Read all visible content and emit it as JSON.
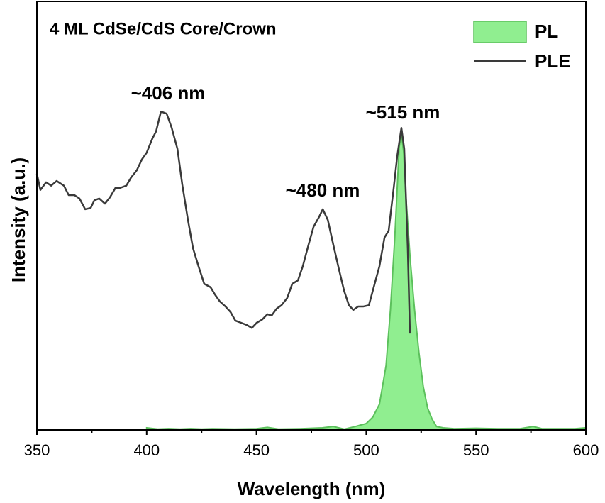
{
  "chart_data": {
    "type": "line-area",
    "title": "4 ML CdSe/CdS Core/Crown",
    "x_label": "Wavelength (nm)",
    "y_label": "Intensity (a.u.)",
    "annotations": [
      "~406 nm",
      "~480 nm",
      "~515 nm"
    ],
    "xlim": [
      350,
      600
    ],
    "xticks": [
      350,
      400,
      450,
      500,
      550,
      600
    ],
    "ylim": [
      0,
      100
    ],
    "legend": "upper right",
    "series": [
      {
        "name": "PL",
        "kind": "area",
        "color": "#90ee90",
        "edge": "#5cc05c",
        "x": [
          400,
          405,
          410,
          415,
          420,
          425,
          430,
          440,
          450,
          455,
          460,
          470,
          480,
          485,
          490,
          495,
          500,
          503,
          506,
          509,
          511,
          513,
          515,
          516,
          517,
          518,
          520,
          522,
          524,
          526,
          528,
          530,
          532,
          535,
          540,
          550,
          560,
          570,
          576,
          580,
          590,
          595,
          600
        ],
        "values": [
          0.5,
          0.2,
          0.3,
          0.2,
          0.3,
          0.2,
          0.3,
          0.2,
          0.3,
          0.6,
          0.2,
          0.3,
          0.5,
          0.8,
          0.2,
          0.8,
          1.5,
          3,
          6,
          15,
          28,
          45,
          66,
          69,
          65,
          55,
          40,
          28,
          18,
          10,
          5,
          2.5,
          0.8,
          0.5,
          0.3,
          0.4,
          0.3,
          0.3,
          0.8,
          0.3,
          0.3,
          0.3,
          0.5
        ]
      },
      {
        "name": "PLE",
        "kind": "line",
        "color": "#3a3a3a",
        "x": [
          350,
          351.6,
          354.2,
          356.5,
          359,
          362.3,
          364.5,
          367.1,
          369.4,
          372,
          374.5,
          376.2,
          378.4,
          381,
          383.3,
          385.8,
          388,
          390.7,
          392.9,
          395.5,
          397.8,
          400,
          402.6,
          404.3,
          406.5,
          409.1,
          411.4,
          414,
          416.2,
          418.8,
          421.1,
          423.6,
          426.2,
          429.1,
          431.1,
          433.3,
          435.9,
          438.2,
          440.4,
          443,
          445.6,
          447.9,
          450.1,
          452.7,
          455,
          456.9,
          459.2,
          461.4,
          464,
          466.3,
          468.9,
          471.1,
          473.7,
          476,
          478.6,
          480.2,
          482.5,
          485,
          487.6,
          489.9,
          492.1,
          494.1,
          496.3,
          498.6,
          501.2,
          503.4,
          506,
          508.3,
          510.2,
          512.5,
          514.1,
          516,
          517.3,
          518.9,
          519.9
        ],
        "values": [
          59.8,
          56.0,
          57.8,
          57.0,
          58.1,
          57.0,
          54.8,
          54.8,
          54.0,
          51.5,
          51.8,
          53.6,
          54.0,
          52.8,
          54.3,
          56.5,
          56.5,
          57.0,
          58.9,
          60.6,
          63.1,
          64.7,
          68.0,
          69.7,
          74.3,
          73.8,
          70.5,
          65.6,
          57.3,
          49.0,
          42.4,
          38.2,
          34.1,
          33.3,
          31.6,
          30.0,
          28.8,
          27.5,
          25.5,
          25.0,
          24.5,
          23.8,
          25.0,
          25.8,
          27.0,
          26.7,
          28.3,
          29.1,
          30.8,
          34.1,
          34.9,
          38.2,
          43.2,
          47.4,
          49.8,
          51.5,
          49.0,
          43.2,
          37.4,
          32.5,
          29.1,
          28.0,
          28.8,
          28.8,
          29.1,
          33.3,
          38.2,
          44.9,
          46.5,
          56.5,
          63.9,
          70.5,
          65.6,
          42.4,
          22.5
        ]
      }
    ]
  }
}
